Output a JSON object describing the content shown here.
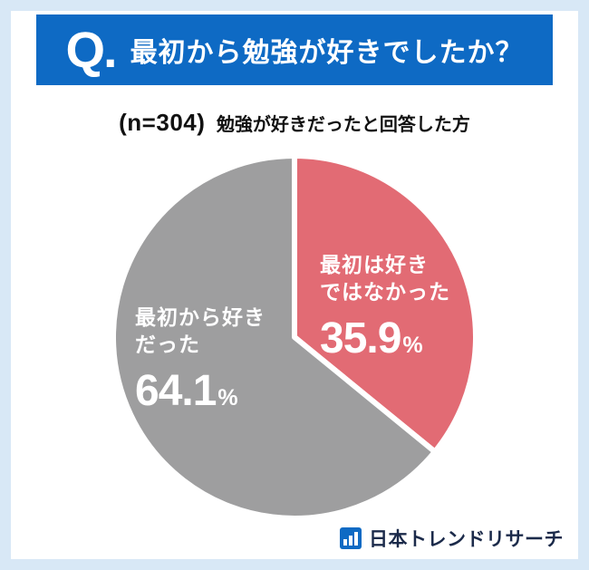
{
  "header": {
    "q": "Q.",
    "title": "最初から勉強が好きでしたか？"
  },
  "subtitle": {
    "n": "(n=304)",
    "text": "勉強が好きだったと回答した方"
  },
  "chart_data": {
    "type": "pie",
    "title": "最初から勉強が好きでしたか？",
    "sample_note": "(n=304) 勉強が好きだったと回答した方",
    "start_angle": "top",
    "direction": "clockwise",
    "slices": [
      {
        "label": "最初は好きではなかった",
        "value": 35.9,
        "color": "#e26b74"
      },
      {
        "label": "最初から好きだった",
        "value": 64.1,
        "color": "#9e9e9f"
      }
    ]
  },
  "pie_labels": {
    "red": {
      "lines": [
        "最初は好き",
        "ではなかった"
      ],
      "value": "35.9",
      "unit": "%"
    },
    "gray": {
      "lines": [
        "最初から好き",
        "だった"
      ],
      "value": "64.1",
      "unit": "%"
    }
  },
  "footer": {
    "brand": "日本トレンドリサーチ"
  },
  "colors": {
    "header_blue": "#0e6ac4",
    "frame_blue": "#d8e8f6",
    "red": "#e26b74",
    "gray": "#9e9e9f"
  }
}
